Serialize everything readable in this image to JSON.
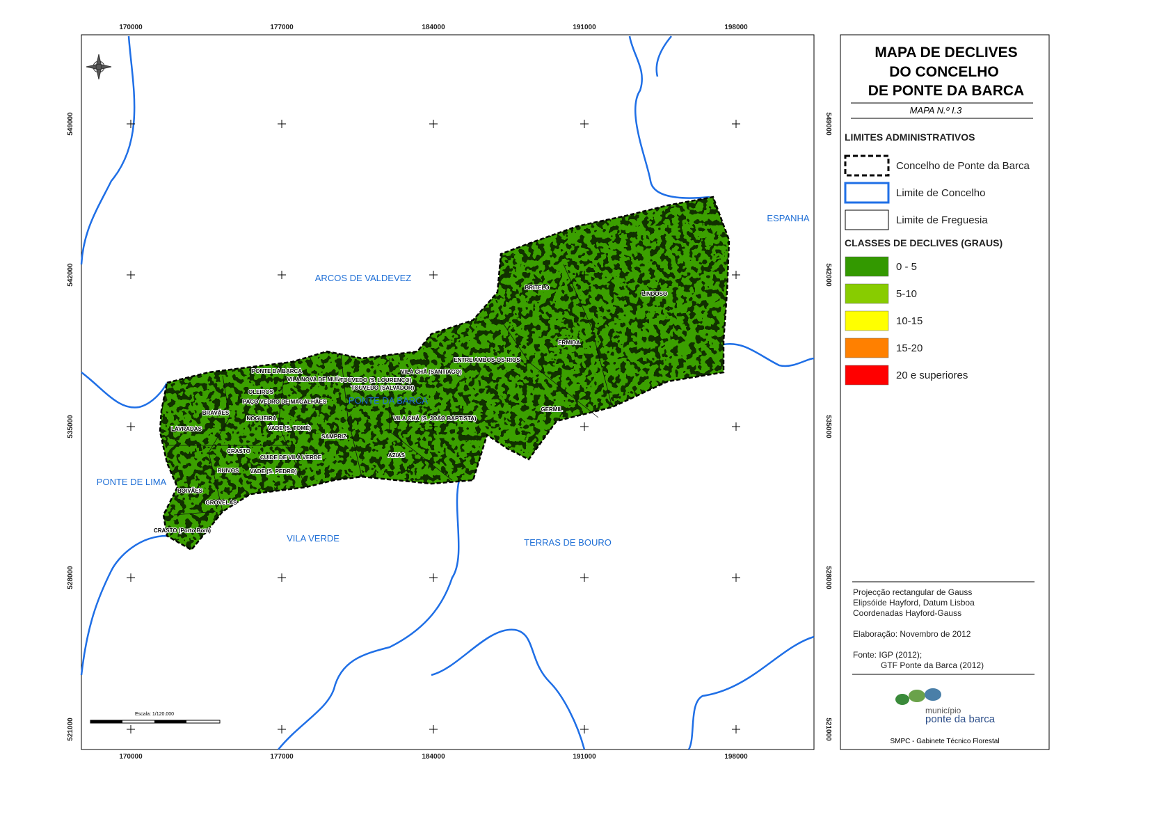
{
  "map": {
    "title": [
      "MAPA DE DECLIVES",
      "DO CONCELHO",
      "DE PONTE DA BARCA"
    ],
    "subtitle": "MAPA N.º I.3",
    "x_ticks": [
      170000,
      177000,
      184000,
      191000,
      198000
    ],
    "y_ticks": [
      549000,
      542000,
      535000,
      528000,
      521000
    ],
    "scale": "Escala: 1/120.000",
    "regions": [
      "ARCOS DE VALDEVEZ",
      "ESPANHA",
      "PONTE DA BARCA",
      "PONTE DE LIMA",
      "VILA VERDE",
      "TERRAS DE BOURO"
    ],
    "parishes": [
      "PONTE DA BARCA",
      "VILA NOVA DE MUÍA",
      "OLEIROS",
      "TOUVEDO (S. LOURENÇO)",
      "TOUVEDO (SALVADOR)",
      "VILA CHÃ (SANTIAGO)",
      "ENTRE AMBOS-OS-RIOS",
      "PAÇO VEDRO DE MAGALHÃES",
      "BRAVÃES",
      "NOGUEIRA",
      "VADE (S. TOMÉ)",
      "LAVRADAS",
      "SAMPRIZ",
      "CRASTO",
      "CUIDE DE VILA VERDE",
      "RUIVOS",
      "VADE (S. PEDRO)",
      "AZIAS",
      "VILA CHÃ (S. JOÃO BAPTISTA)",
      "GERMIL",
      "ERMIDA",
      "BRITELO",
      "LINDOSO",
      "BOIVÃES",
      "GROVELAS",
      "CRASTO (Porto Bom)"
    ]
  },
  "legend": {
    "admin_title": "LIMITES ADMINISTRATIVOS",
    "admin": [
      "Concelho de Ponte da Barca",
      "Limite de Concelho",
      "Limite de Freguesia"
    ],
    "slope_title": "CLASSES DE DECLIVES (GRAUS)",
    "slope_classes": [
      {
        "label": "0 - 5",
        "color": "#339900"
      },
      {
        "label": "5-10",
        "color": "#88cc00"
      },
      {
        "label": "10-15",
        "color": "#ffff00"
      },
      {
        "label": "15-20",
        "color": "#ff8000"
      },
      {
        "label": "20 e superiores",
        "color": "#ff0000"
      }
    ],
    "notes": [
      "Projecção rectangular de Gauss",
      "Elipsóide Hayford, Datum Lisboa",
      "Coordenadas Hayford-Gauss",
      "Elaboração: Novembro de 2012",
      "Fonte: IGP (2012);",
      "GTF Ponte da Barca (2012)"
    ],
    "logo": [
      "município",
      "ponte da barca"
    ],
    "footer": "SMPC - Gabinete Técnico Florestal"
  }
}
